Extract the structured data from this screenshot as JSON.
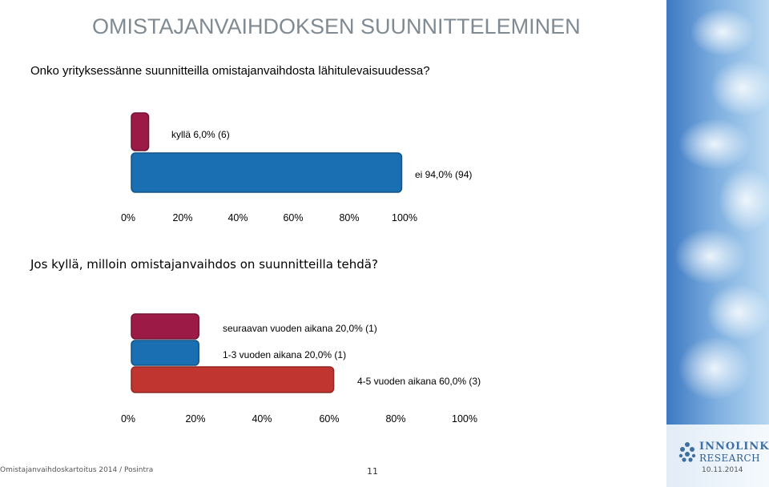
{
  "page": {
    "title": "OMISTAJANVAIHDOKSEN SUUNNITTELEMINEN",
    "question1": "Onko yrityksessänne suunnitteilla omistajanvaihdosta lähitulevaisuudessa?",
    "question2": "Jos kyllä, milloin omistajanvaihdos on suunnitteilla tehdä?"
  },
  "footer": {
    "left": "Omistajanvaihdoskartoitus 2014 / Posintra",
    "page_number": "11",
    "date": "10.11.2014"
  },
  "logo": {
    "line1": "INNOLINK",
    "line2": "RESEARCH"
  },
  "chart_data": [
    {
      "type": "bar",
      "orientation": "horizontal",
      "categories": [
        "kyllä",
        "ei"
      ],
      "values": [
        6.0,
        94.0
      ],
      "counts": [
        6,
        94
      ],
      "labels": [
        "kyllä 6,0% (6)",
        "ei 94,0% (94)"
      ],
      "colors": [
        "#9b1b46",
        "#1a6fb2"
      ],
      "xlim": [
        0,
        100
      ],
      "xticks": [
        "0%",
        "20%",
        "40%",
        "60%",
        "80%",
        "100%"
      ]
    },
    {
      "type": "bar",
      "orientation": "horizontal",
      "categories": [
        "seuraavan vuoden aikana",
        "1-3 vuoden aikana",
        "4-5 vuoden aikana"
      ],
      "values": [
        20.0,
        20.0,
        60.0
      ],
      "counts": [
        1,
        1,
        3
      ],
      "labels": [
        "seuraavan vuoden aikana 20,0% (1)",
        "1-3 vuoden aikana 20,0% (1)",
        "4-5 vuoden aikana 60,0% (3)"
      ],
      "colors": [
        "#9b1b46",
        "#1a6fb2",
        "#c0352f"
      ],
      "xlim": [
        0,
        100
      ],
      "xticks": [
        "0%",
        "20%",
        "40%",
        "60%",
        "80%",
        "100%"
      ]
    }
  ]
}
